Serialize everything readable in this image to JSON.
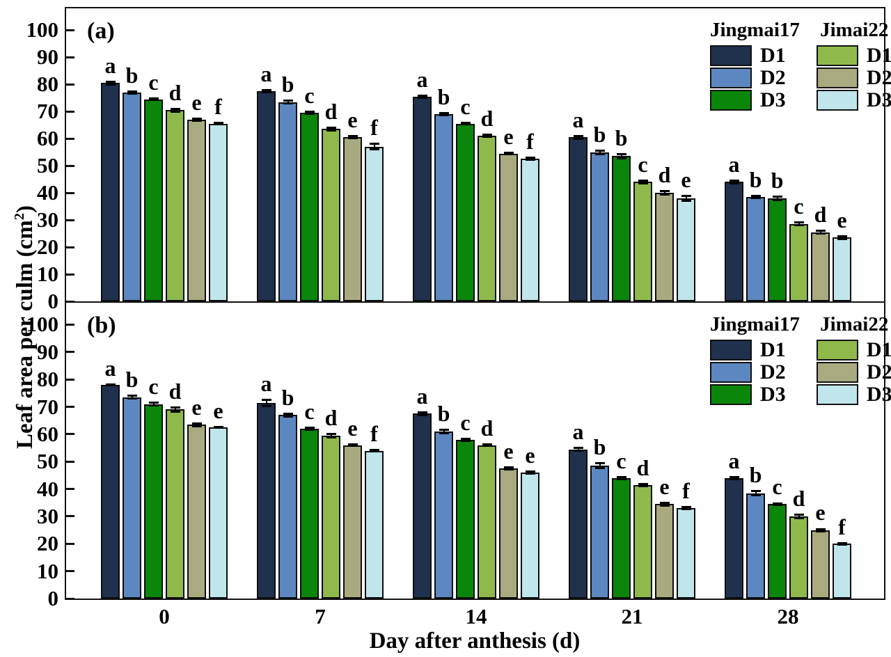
{
  "figure": {
    "x_axis_label": "Day after anthesis (d)",
    "y_label_pre": "Leaf area per culm (cm",
    "y_label_sup": "2",
    "y_label_post": ")",
    "y_ticks": [
      0,
      10,
      20,
      30,
      40,
      50,
      60,
      70,
      80,
      90,
      100
    ],
    "categories": [
      "0",
      "7",
      "14",
      "21",
      "28"
    ]
  },
  "legend": {
    "groups": [
      {
        "name": "Jingmai17",
        "items": [
          {
            "label": "D1",
            "color": "#20314d"
          },
          {
            "label": "D2",
            "color": "#5d87c0"
          },
          {
            "label": "D3",
            "color": "#0a860a"
          }
        ]
      },
      {
        "name": "Jimai22",
        "items": [
          {
            "label": "D1",
            "color": "#8fba4b"
          },
          {
            "label": "D2",
            "color": "#a9aa80"
          },
          {
            "label": "D3",
            "color": "#c0e6ec"
          }
        ]
      }
    ]
  },
  "chart_data": [
    {
      "type": "bar",
      "panel_label": "(a)",
      "title": "",
      "xlabel": "Day after anthesis (d)",
      "ylabel": "Leaf area per culm (cm2)",
      "categories": [
        "0",
        "7",
        "14",
        "21",
        "28"
      ],
      "ylim": [
        0,
        108
      ],
      "y_ticks": [
        0,
        10,
        20,
        30,
        40,
        50,
        60,
        70,
        80,
        90,
        100
      ],
      "grid": false,
      "legend_position": "top-right",
      "series": [
        {
          "name": "Jingmai17 D1",
          "color": "#20314d",
          "values": [
            80.5,
            77.5,
            75.5,
            60.5,
            44.0
          ],
          "errors": [
            0.9,
            0.8,
            0.8,
            0.9,
            0.9
          ]
        },
        {
          "name": "Jingmai17 D2",
          "color": "#5d87c0",
          "values": [
            77.0,
            73.5,
            69.0,
            55.0,
            38.5
          ],
          "errors": [
            0.8,
            0.8,
            0.8,
            1.0,
            0.8
          ]
        },
        {
          "name": "Jingmai17 D3",
          "color": "#0a860a",
          "values": [
            74.5,
            69.5,
            65.5,
            53.5,
            38.0
          ],
          "errors": [
            0.7,
            0.7,
            0.7,
            1.2,
            1.1
          ]
        },
        {
          "name": "Jimai22 D1",
          "color": "#8fba4b",
          "values": [
            70.5,
            63.5,
            61.0,
            44.0,
            28.5
          ],
          "errors": [
            0.9,
            0.8,
            0.8,
            0.8,
            0.9
          ]
        },
        {
          "name": "Jimai22 D2",
          "color": "#a9aa80",
          "values": [
            67.0,
            60.5,
            54.5,
            40.0,
            25.5
          ],
          "errors": [
            0.8,
            0.7,
            0.7,
            1.0,
            0.9
          ]
        },
        {
          "name": "Jimai22 D3",
          "color": "#c0e6ec",
          "values": [
            65.5,
            57.0,
            52.5,
            38.0,
            23.5
          ],
          "errors": [
            0.7,
            1.4,
            0.8,
            1.2,
            0.8
          ]
        }
      ],
      "letters": [
        [
          "a",
          "b",
          "c",
          "d",
          "e",
          "f"
        ],
        [
          "a",
          "b",
          "c",
          "d",
          "e",
          "f"
        ],
        [
          "a",
          "b",
          "c",
          "d",
          "e",
          "f"
        ],
        [
          "a",
          "b",
          "b",
          "c",
          "d",
          "e"
        ],
        [
          "a",
          "b",
          "b",
          "c",
          "d",
          "e"
        ]
      ]
    },
    {
      "type": "bar",
      "panel_label": "(b)",
      "title": "",
      "xlabel": "Day after anthesis (d)",
      "ylabel": "Leaf area per culm (cm2)",
      "categories": [
        "0",
        "7",
        "14",
        "21",
        "28"
      ],
      "ylim": [
        0,
        108
      ],
      "y_ticks": [
        0,
        10,
        20,
        30,
        40,
        50,
        60,
        70,
        80,
        90,
        100
      ],
      "grid": false,
      "legend_position": "top-right",
      "series": [
        {
          "name": "Jingmai17 D1",
          "color": "#20314d",
          "values": [
            78.0,
            71.5,
            67.5,
            54.5,
            44.0
          ],
          "errors": [
            0.6,
            1.5,
            0.9,
            0.8,
            0.7
          ]
        },
        {
          "name": "Jingmai17 D2",
          "color": "#5d87c0",
          "values": [
            73.5,
            67.0,
            61.0,
            48.5,
            38.5
          ],
          "errors": [
            0.9,
            0.9,
            0.9,
            1.2,
            1.2
          ]
        },
        {
          "name": "Jingmai17 D3",
          "color": "#0a860a",
          "values": [
            71.0,
            62.0,
            58.0,
            44.0,
            34.5
          ],
          "errors": [
            0.8,
            0.8,
            0.7,
            0.8,
            0.7
          ]
        },
        {
          "name": "Jimai22 D1",
          "color": "#8fba4b",
          "values": [
            69.0,
            59.5,
            56.0,
            41.5,
            30.0
          ],
          "errors": [
            1.2,
            1.0,
            0.7,
            0.8,
            1.0
          ]
        },
        {
          "name": "Jimai22 D2",
          "color": "#a9aa80",
          "values": [
            63.5,
            56.0,
            47.5,
            34.5,
            25.0
          ],
          "errors": [
            0.9,
            0.6,
            0.7,
            0.9,
            0.8
          ]
        },
        {
          "name": "Jimai22 D3",
          "color": "#c0e6ec",
          "values": [
            62.5,
            54.0,
            46.0,
            33.0,
            20.0
          ],
          "errors": [
            0.6,
            0.7,
            0.7,
            0.8,
            0.7
          ]
        }
      ],
      "letters": [
        [
          "a",
          "b",
          "c",
          "d",
          "e",
          "e"
        ],
        [
          "a",
          "b",
          "c",
          "d",
          "e",
          "f"
        ],
        [
          "a",
          "b",
          "c",
          "d",
          "e",
          "e"
        ],
        [
          "a",
          "b",
          "c",
          "d",
          "e",
          "f"
        ],
        [
          "a",
          "b",
          "c",
          "d",
          "e",
          "f"
        ]
      ]
    }
  ]
}
